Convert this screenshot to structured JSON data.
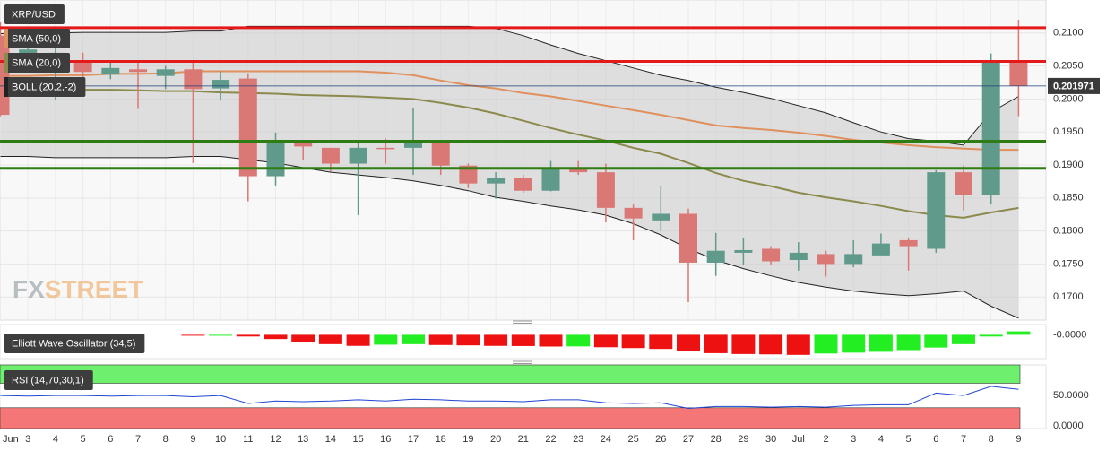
{
  "chart_data": [
    {
      "type": "candlestick",
      "title": "XRP/USD",
      "open": [
        0.2096,
        0.206,
        0.205,
        0.2055,
        0.2037,
        0.2045,
        0.2035,
        0.2045,
        0.2016,
        0.2031,
        0.1883,
        0.1933,
        0.1926,
        0.1902,
        0.1926,
        0.1926,
        0.1936,
        0.1899,
        0.1872,
        0.1881,
        0.1861,
        0.1896,
        0.1889,
        0.1835,
        0.1816,
        0.1826,
        0.1752,
        0.1767,
        0.1773,
        0.1756,
        0.1765,
        0.175,
        0.1763,
        0.1786,
        0.1773,
        0.1889,
        0.1854,
        0.2055
      ],
      "high": [
        0.2116,
        0.2085,
        0.2077,
        0.207,
        0.2058,
        0.2058,
        0.205,
        0.2057,
        0.2042,
        0.2039,
        0.1949,
        0.1937,
        0.1926,
        0.1933,
        0.194,
        0.1987,
        0.1936,
        0.1902,
        0.1889,
        0.1885,
        0.1906,
        0.1906,
        0.1902,
        0.184,
        0.1868,
        0.1834,
        0.1797,
        0.179,
        0.1777,
        0.1783,
        0.177,
        0.1786,
        0.1796,
        0.179,
        0.1892,
        0.1899,
        0.2069,
        0.212
      ],
      "low": [
        0.1974,
        0.205,
        0.1999,
        0.203,
        0.203,
        0.1985,
        0.2015,
        0.1903,
        0.1998,
        0.1845,
        0.1869,
        0.1908,
        0.189,
        0.1824,
        0.1902,
        0.1885,
        0.1885,
        0.1865,
        0.1849,
        0.1858,
        0.186,
        0.1885,
        0.1813,
        0.1786,
        0.18,
        0.1692,
        0.1732,
        0.1749,
        0.1749,
        0.174,
        0.1731,
        0.1745,
        0.1763,
        0.174,
        0.1767,
        0.1831,
        0.184,
        0.1974
      ],
      "close": [
        0.1976,
        0.2075,
        0.207,
        0.2041,
        0.2047,
        0.2041,
        0.2045,
        0.2015,
        0.2029,
        0.1883,
        0.1933,
        0.1928,
        0.1902,
        0.1926,
        0.1924,
        0.1936,
        0.1899,
        0.1872,
        0.1881,
        0.1861,
        0.1896,
        0.1889,
        0.1835,
        0.1819,
        0.1826,
        0.1752,
        0.177,
        0.1771,
        0.1754,
        0.1767,
        0.175,
        0.1765,
        0.1781,
        0.1777,
        0.1889,
        0.1854,
        0.2055,
        0.202
      ],
      "up_color": "#5f9a8b",
      "down_color": "#d97874",
      "ylim": [
        0.1665,
        0.215
      ],
      "yticks": [
        {
          "value": 0.17,
          "label": "0.1700"
        },
        {
          "value": 0.175,
          "label": "0.1750"
        },
        {
          "value": 0.18,
          "label": "0.1800"
        },
        {
          "value": 0.185,
          "label": "0.1850"
        },
        {
          "value": 0.19,
          "label": "0.1900"
        },
        {
          "value": 0.195,
          "label": "0.1950"
        },
        {
          "value": 0.2,
          "label": "0.2000"
        },
        {
          "value": 0.205,
          "label": "0.2050"
        },
        {
          "value": 0.21,
          "label": "0.2100"
        }
      ],
      "grid": true,
      "last_price": 0.201971,
      "levels": [
        {
          "value": 0.2108,
          "color": "#e41a1a"
        },
        {
          "value": 0.2057,
          "color": "#e41a1a"
        },
        {
          "value": 0.1936,
          "color": "#2e7d12"
        },
        {
          "value": 0.1895,
          "color": "#2e7d12"
        }
      ],
      "series": [
        {
          "name": "SMA (50,0)",
          "color": "#e0905c",
          "values": [
            0.2035,
            0.2035,
            0.2036,
            0.2036,
            0.2038,
            0.2038,
            0.2039,
            0.2042,
            0.2042,
            0.2042,
            0.2042,
            0.2042,
            0.2042,
            0.2042,
            0.204,
            0.2036,
            0.2028,
            0.2021,
            0.2016,
            0.2009,
            0.2004,
            0.1997,
            0.199,
            0.1983,
            0.1976,
            0.1968,
            0.196,
            0.1956,
            0.1953,
            0.1949,
            0.1944,
            0.1938,
            0.1934,
            0.193,
            0.1927,
            0.1925,
            0.1923,
            0.1923
          ]
        },
        {
          "name": "SMA (20,0)",
          "color": "#8b8a4c",
          "values": [
            0.2014,
            0.2014,
            0.2014,
            0.2014,
            0.2014,
            0.2013,
            0.2012,
            0.2012,
            0.201,
            0.2009,
            0.2008,
            0.2006,
            0.2005,
            0.2004,
            0.2002,
            0.2,
            0.1994,
            0.1987,
            0.1978,
            0.1967,
            0.1956,
            0.1946,
            0.1937,
            0.1926,
            0.1917,
            0.1903,
            0.1888,
            0.1876,
            0.1868,
            0.1858,
            0.1851,
            0.1845,
            0.1838,
            0.183,
            0.1824,
            0.182,
            0.1828,
            0.1835
          ]
        },
        {
          "name": "BOLL (20,2,-2)",
          "color": "#222222",
          "upper": [
            0.2099,
            0.21,
            0.21,
            0.2101,
            0.2101,
            0.2101,
            0.2101,
            0.2103,
            0.2103,
            0.211,
            0.211,
            0.211,
            0.211,
            0.211,
            0.211,
            0.211,
            0.211,
            0.211,
            0.2107,
            0.2096,
            0.2082,
            0.2069,
            0.2058,
            0.2047,
            0.2036,
            0.2028,
            0.2018,
            0.201,
            0.2001,
            0.199,
            0.1979,
            0.1964,
            0.195,
            0.194,
            0.1936,
            0.193,
            0.198,
            0.2004
          ],
          "lower": [
            0.1913,
            0.1913,
            0.1911,
            0.1911,
            0.1911,
            0.1911,
            0.1911,
            0.1913,
            0.1913,
            0.1908,
            0.1903,
            0.1896,
            0.1889,
            0.1885,
            0.1881,
            0.1876,
            0.1869,
            0.1861,
            0.1851,
            0.1845,
            0.1838,
            0.1832,
            0.1824,
            0.1811,
            0.1794,
            0.1773,
            0.1756,
            0.1743,
            0.1732,
            0.1722,
            0.1715,
            0.1709,
            0.1705,
            0.1702,
            0.1705,
            0.1709,
            0.1686,
            0.1668
          ]
        }
      ]
    },
    {
      "type": "bar",
      "title": "Elliott Wave Oscillator (34,5)",
      "values": [
        null,
        null,
        null,
        null,
        null,
        null,
        null,
        -0.0005,
        -0.0003,
        -0.001,
        -0.0025,
        -0.004,
        -0.0055,
        -0.0065,
        -0.0058,
        -0.0055,
        -0.006,
        -0.0062,
        -0.0065,
        -0.0066,
        -0.0069,
        -0.0068,
        -0.0073,
        -0.0078,
        -0.0083,
        -0.0098,
        -0.0108,
        -0.0113,
        -0.0115,
        -0.0118,
        -0.011,
        -0.0105,
        -0.01,
        -0.009,
        -0.0075,
        -0.0055,
        -0.001,
        0.002
      ],
      "up_color": "#22ee22",
      "down_color": "#ee1111",
      "ylim": [
        -0.014,
        0.006
      ],
      "yticks": [
        {
          "value": 0,
          "label": "-0.0000"
        }
      ]
    },
    {
      "type": "line",
      "title": "RSI (14,70,30,1)",
      "categories": [
        "Jun",
        "3",
        "4",
        "5",
        "6",
        "7",
        "8",
        "9",
        "10",
        "11",
        "12",
        "13",
        "14",
        "15",
        "16",
        "17",
        "18",
        "19",
        "20",
        "21",
        "22",
        "23",
        "24",
        "25",
        "26",
        "27",
        "28",
        "29",
        "30",
        "Jul",
        "2",
        "3",
        "4",
        "5",
        "6",
        "7",
        "8",
        "9"
      ],
      "values": [
        50,
        49,
        50,
        50,
        49,
        50,
        50,
        48,
        50,
        37,
        41,
        40,
        41,
        43,
        41,
        44,
        43,
        41,
        41,
        40,
        43,
        43,
        38,
        37,
        38,
        29,
        32,
        32,
        31,
        32,
        31,
        34,
        35,
        35,
        54,
        50,
        65,
        60
      ],
      "color": "#2046d0",
      "bands": [
        {
          "from": 70,
          "to": 100,
          "color": "#6ef06e"
        },
        {
          "from": 30,
          "to": -4,
          "color": "#f47676"
        }
      ],
      "ylim": [
        -4,
        100
      ],
      "yticks": [
        {
          "value": 50,
          "label": "50.0000"
        },
        {
          "value": 0,
          "label": "0.0000"
        }
      ]
    }
  ],
  "watermark": [
    "FX",
    "STREET"
  ]
}
